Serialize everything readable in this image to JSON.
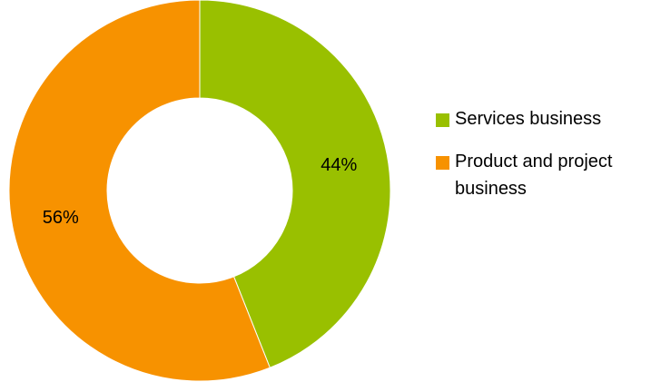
{
  "chart_data": {
    "type": "pie",
    "variant": "donut",
    "slices": [
      {
        "name": "Services business",
        "value": 44,
        "label": "44%",
        "color": "#99C000"
      },
      {
        "name": "Product and project business",
        "value": 56,
        "label": "56%",
        "color": "#F79200"
      }
    ],
    "legend_position": "right"
  }
}
